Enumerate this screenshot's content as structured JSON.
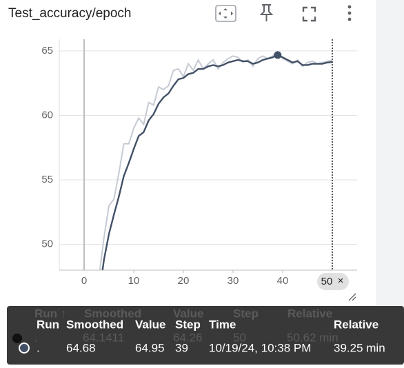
{
  "card": {
    "title": "Test_accuracy/epoch"
  },
  "chart_data": {
    "type": "line",
    "x": [
      3,
      4,
      5,
      6,
      7,
      8,
      9,
      10,
      11,
      12,
      13,
      14,
      15,
      16,
      17,
      18,
      19,
      20,
      21,
      22,
      23,
      24,
      25,
      26,
      27,
      28,
      29,
      30,
      31,
      32,
      33,
      34,
      35,
      36,
      37,
      38,
      39,
      40,
      41,
      42,
      43,
      44,
      45,
      46,
      47,
      48,
      49,
      50
    ],
    "series": [
      {
        "color": "#c5cad3",
        "values": [
          47.5,
          50.5,
          53,
          53.5,
          55.5,
          57.8,
          57.8,
          59,
          59.8,
          59.3,
          61,
          60.8,
          62.2,
          62,
          62.3,
          63.5,
          63.6,
          63,
          64,
          63.5,
          64.3,
          63.6,
          64,
          64.3,
          63.6,
          64.1,
          64.4,
          64.6,
          64.5,
          64.1,
          64.3,
          63.8,
          64.4,
          64.6,
          64.4,
          64.6,
          64.95,
          64.4,
          64.2,
          64,
          64.3,
          63.8,
          64.1,
          64.2,
          64,
          64.1,
          64.2,
          64.26
        ]
      },
      {
        "color": "#425066",
        "values": [
          46,
          48.8,
          50.8,
          52.3,
          53.7,
          55.3,
          56.3,
          57.4,
          58.4,
          58.7,
          59.6,
          60.1,
          60.9,
          61.4,
          61.7,
          62.3,
          62.8,
          62.9,
          63.2,
          63.3,
          63.6,
          63.6,
          63.8,
          63.9,
          63.8,
          63.9,
          64.1,
          64.2,
          64.3,
          64.2,
          64.2,
          64,
          64.1,
          64.3,
          64.4,
          64.5,
          64.68,
          64.5,
          64.3,
          64.1,
          64.2,
          63.9,
          63.9,
          64,
          64,
          64,
          64.1,
          64.1411
        ]
      }
    ],
    "xlim": [
      -5,
      55
    ],
    "ylim": [
      48,
      65.9
    ],
    "xticks": [
      0,
      10,
      20,
      30,
      40
    ],
    "yticks": [
      50,
      55,
      60,
      65
    ],
    "grid": true
  },
  "tooltip_ghost": {
    "headers": [
      "Run ↑",
      "Smoothed",
      "Value",
      "Step",
      "Relative"
    ],
    "row": [
      ".",
      "64.1411",
      "64.26",
      "50",
      "50.62 min"
    ]
  },
  "tooltip": {
    "headers": [
      "Run",
      "Smoothed",
      "Value",
      "Step",
      "Time",
      "Relative"
    ],
    "row": [
      ".",
      "64.68",
      "64.95",
      "39",
      "10/19/24, 10:38 PM",
      "39.25 min"
    ]
  }
}
